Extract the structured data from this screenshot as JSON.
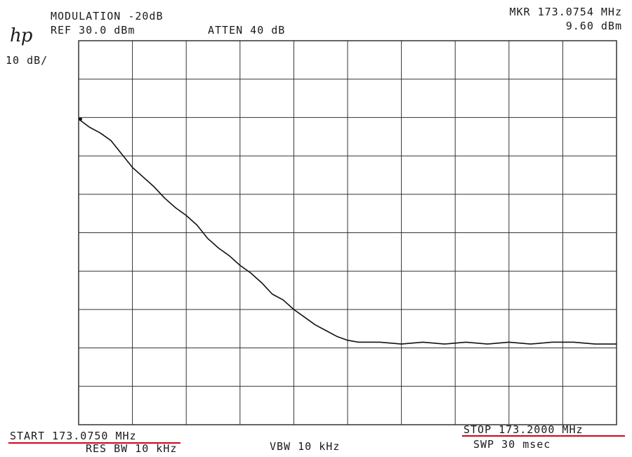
{
  "header": {
    "modulation": "MODULATION -20dB",
    "ref": "REF 30.0 dBm",
    "atten": "ATTEN 40 dB",
    "mkr": "MKR 173.0754 MHz",
    "mkr_level": "9.60 dBm",
    "logo": "hp",
    "scale": "10 dB/"
  },
  "footer": {
    "start": "START 173.0750 MHz",
    "stop": "STOP 173.2000 MHz",
    "res_bw": "RES BW 10 kHz",
    "vbw": "VBW 10 kHz",
    "swp": "SWP 30 msec"
  },
  "colors": {
    "trace": "#111111",
    "grid": "#333333",
    "annotation_underline": "#d0021b"
  },
  "chart_data": {
    "type": "line",
    "title": "",
    "xlabel": "",
    "ylabel": "",
    "x_unit": "MHz",
    "y_unit": "dBm",
    "xlim": [
      173.075,
      173.2
    ],
    "ylim": [
      -70,
      30
    ],
    "grid": true,
    "divisions": {
      "x": 10,
      "y": 10
    },
    "series": [
      {
        "x": [
          173.075,
          173.0775,
          173.08,
          173.0825,
          173.085,
          173.0875,
          173.09,
          173.0925,
          173.095,
          173.0975,
          173.1,
          173.1025,
          173.105,
          173.1075,
          173.11,
          173.1125,
          173.115,
          173.1175,
          173.12,
          173.1225,
          173.125,
          173.1275,
          173.13,
          173.1325,
          173.135,
          173.1375,
          173.14,
          173.145,
          173.15,
          173.155,
          173.16,
          173.165,
          173.17,
          173.175,
          173.18,
          173.185,
          173.19,
          173.195,
          173.2
        ],
        "y": [
          9.6,
          7.5,
          6.0,
          4.0,
          0.5,
          -3.0,
          -5.5,
          -8.0,
          -11.0,
          -13.5,
          -15.5,
          -18.0,
          -21.5,
          -24.0,
          -26.0,
          -28.5,
          -30.5,
          -33.0,
          -36.0,
          -37.5,
          -40.0,
          -42.0,
          -44.0,
          -45.5,
          -47.0,
          -48.0,
          -48.5,
          -48.5,
          -49.0,
          -48.5,
          -49.0,
          -48.5,
          -49.0,
          -48.5,
          -49.0,
          -48.5,
          -48.5,
          -49.0,
          -49.0
        ]
      }
    ],
    "marker": {
      "x": 173.0754,
      "y": 9.6
    }
  }
}
